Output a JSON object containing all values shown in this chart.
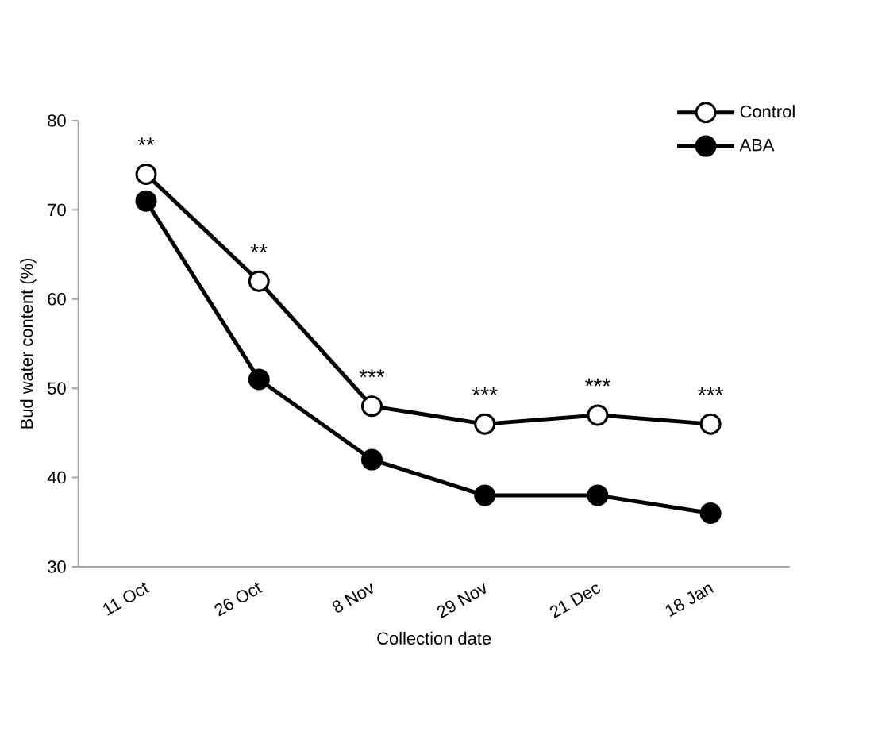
{
  "chart_data": {
    "type": "line",
    "xlabel": "Collection date",
    "ylabel": "Bud water content (%)",
    "categories": [
      "11 Oct",
      "26 Oct",
      "8 Nov",
      "29 Nov",
      "21 Dec",
      "18 Jan"
    ],
    "series": [
      {
        "name": "Control",
        "color": "#000000",
        "marker": "circle",
        "values": [
          74,
          62,
          48,
          46,
          47,
          46
        ]
      },
      {
        "name": "ABA",
        "color": "#000000",
        "marker": "circle",
        "values": [
          71,
          51,
          42,
          38,
          38,
          36
        ]
      }
    ],
    "ylim": [
      30,
      80
    ],
    "yticks": [
      30,
      40,
      50,
      60,
      70,
      80
    ],
    "grid": false,
    "legend": "top right",
    "line_style": "solid",
    "annotations": [
      {
        "text": "**",
        "x": "11 Oct",
        "y": 74
      },
      {
        "text": "**",
        "x": "26 Oct",
        "y": 62
      },
      {
        "text": "***",
        "x": "8 Nov",
        "y": 48
      },
      {
        "text": "***",
        "x": "29 Nov",
        "y": 46
      },
      {
        "text": "***",
        "x": "21 Dec",
        "y": 47
      },
      {
        "text": "***",
        "x": "18 Jan",
        "y": 46
      }
    ]
  }
}
